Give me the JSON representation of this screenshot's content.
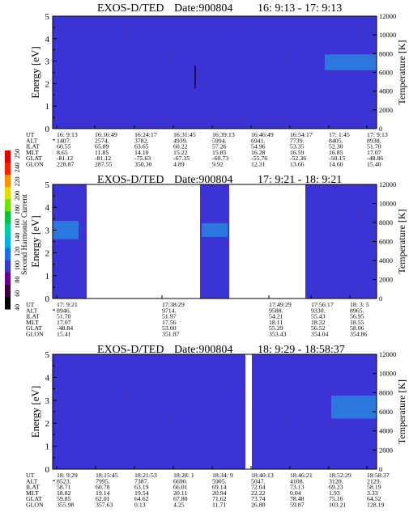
{
  "chart_data": [
    {
      "type": "heatmap",
      "title": "EXOS-D/TED",
      "date_label": "Date:900804",
      "time_range": "16: 9:13 - 17: 9:13",
      "ylabel": "Energy [eV]",
      "y2label": "Temperature [K]",
      "ylim": [
        0,
        5
      ],
      "y2lim": [
        0,
        12000
      ],
      "yticks": [
        "0",
        "1",
        "2",
        "3",
        "4",
        "5"
      ],
      "y2ticks": [
        "0",
        "2000",
        "4000",
        "6000",
        "8000",
        "10000",
        "12000"
      ],
      "background_color": "#3a33d6",
      "gaps": [],
      "hot_region": {
        "x_start_fraction": 0.84,
        "x_end_fraction": 1.0,
        "energy_low": 2.6,
        "energy_high": 3.3,
        "color": "#2c7fe0"
      },
      "spike": {
        "x_fraction": 0.44,
        "energy_low": 1.8,
        "energy_high": 2.8
      },
      "row_labels": [
        "UT",
        "ALT",
        "ILAT",
        "MLT",
        "GLAT",
        "GLON"
      ],
      "columns": [
        {
          "UT": "16: 9:13",
          "ALT": "1407.",
          "ILAT": "60.55",
          "MLT": "8.65",
          "GLAT": "-81.12",
          "GLON": "228.87"
        },
        {
          "UT": "16:16:49",
          "ALT": "2574.",
          "ILAT": "65.89",
          "MLT": "11.85",
          "GLAT": "-81.12",
          "GLON": "287.55"
        },
        {
          "UT": "16:24:17",
          "ALT": "3782.",
          "ILAT": "63.65",
          "MLT": "14.10",
          "GLAT": "-75.63",
          "GLON": "350.30"
        },
        {
          "UT": "16:31:45",
          "ALT": "4939.",
          "ILAT": "60.22",
          "MLT": "15.22",
          "GLAT": "-67.35",
          "GLON": "4.89"
        },
        {
          "UT": "16:39:13",
          "ALT": "5994.",
          "ILAT": "57.26",
          "MLT": "15.85",
          "GLAT": "-60.73",
          "GLON": "9.92"
        },
        {
          "UT": "16:46:49",
          "ALT": "6941.",
          "ILAT": "54.96",
          "MLT": "16.28",
          "GLAT": "-55.76",
          "GLON": "12.31"
        },
        {
          "UT": "16:54:17",
          "ALT": "7739.",
          "ILAT": "53.35",
          "MLT": "16.59",
          "GLAT": "-52.36",
          "GLON": "13.66"
        },
        {
          "UT": "17: 1:45",
          "ALT": "8405.",
          "ILAT": "52.30",
          "MLT": "16.85",
          "GLAT": "-50.15",
          "GLON": "14.60"
        },
        {
          "UT": "17: 9:13",
          "ALT": "8938.",
          "ILAT": "51.70",
          "MLT": "17.07",
          "GLAT": "-48.86",
          "GLON": "15.40"
        }
      ]
    },
    {
      "type": "heatmap",
      "title": "EXOS-D/TED",
      "date_label": "Date:900804",
      "time_range": "17: 9:21 - 18: 9:21",
      "ylabel": "Energy [eV]",
      "y2label": "Temperature [K]",
      "ylim": [
        0,
        5
      ],
      "y2lim": [
        0,
        12000
      ],
      "yticks": [
        "0",
        "1",
        "2",
        "3",
        "4",
        "5"
      ],
      "y2ticks": [
        "0",
        "2000",
        "4000",
        "6000",
        "8000",
        "10000",
        "12000"
      ],
      "background_color": "#3a33d6",
      "gaps": [
        [
          0.105,
          0.455
        ],
        [
          0.545,
          0.78
        ]
      ],
      "hot_region": {
        "x_start_fraction": 0.0,
        "x_end_fraction": 0.08,
        "energy_low": 2.6,
        "energy_high": 3.4,
        "color": "#2c7fe0"
      },
      "hot_region_2": {
        "x_start_fraction": 0.46,
        "x_end_fraction": 0.54,
        "energy_low": 2.7,
        "energy_high": 3.3,
        "color": "#2c7fe0"
      },
      "row_labels": [
        "UT",
        "ALT",
        "ILAT",
        "MLT",
        "GLAT",
        "GLON"
      ],
      "columns": [
        {
          "UT": "17: 9:21",
          "ALT": "8946.",
          "ILAT": "51.70",
          "MLT": "17.07",
          "GLAT": "-48.84",
          "GLON": "15.41"
        },
        {
          "UT": "17:38:29",
          "ALT": "9714.",
          "ILAT": "51.97",
          "MLT": "17.56",
          "GLAT": "53.00",
          "GLON": "351.87"
        },
        {
          "UT": "17:49:29",
          "ALT": "9588.",
          "ILAT": "54.21",
          "MLT": "18.11",
          "GLAT": "55.29",
          "GLON": "353.43"
        },
        {
          "UT": "17:56:17",
          "ALT": "9330.",
          "ILAT": "55.43",
          "MLT": "18.32",
          "GLAT": "56.52",
          "GLON": "354.04"
        },
        {
          "UT": "18: 3: 5",
          "ALT": "8965.",
          "ILAT": "56.95",
          "MLT": "18.55",
          "GLAT": "58.06",
          "GLON": "354.86"
        }
      ]
    },
    {
      "type": "heatmap",
      "title": "EXOS-D/TED",
      "date_label": "Date:900804",
      "time_range": "18: 9:29 - 18:58:37",
      "ylabel": "Energy [eV]",
      "y2label": "Temperature [K]",
      "ylim": [
        0,
        5
      ],
      "y2lim": [
        0,
        12000
      ],
      "yticks": [
        "0",
        "1",
        "2",
        "3",
        "4",
        "5"
      ],
      "y2ticks": [
        "0",
        "2000",
        "4000",
        "6000",
        "8000",
        "10000",
        "12000"
      ],
      "background_color": "#3a33d6",
      "gaps": [
        [
          0.595,
          0.615
        ]
      ],
      "hot_region": {
        "x_start_fraction": 0.86,
        "x_end_fraction": 1.0,
        "energy_low": 2.2,
        "energy_high": 3.2,
        "color": "#2c7fe0"
      },
      "row_labels": [
        "UT",
        "ALT",
        "ILAT",
        "MLT",
        "GLAT",
        "GLON"
      ],
      "columns": [
        {
          "UT": "18: 9:29",
          "ALT": "8523.",
          "ILAT": "58.71",
          "MLT": "18.82",
          "GLAT": "59.85",
          "GLON": "355.98"
        },
        {
          "UT": "18:15:45",
          "ALT": "7995.",
          "ILAT": "60.78",
          "MLT": "19.14",
          "GLAT": "62.01",
          "GLON": "357.63"
        },
        {
          "UT": "18:21:53",
          "ALT": "7387.",
          "ILAT": "63.19",
          "MLT": "19.54",
          "GLAT": "64.62",
          "GLON": "0.13"
        },
        {
          "UT": "18:28: 1",
          "ALT": "6690.",
          "ILAT": "66.01",
          "MLT": "20.11",
          "GLAT": "67.80",
          "GLON": "4.25"
        },
        {
          "UT": "18:34: 9",
          "ALT": "5905.",
          "ILAT": "69.14",
          "MLT": "20.94",
          "GLAT": "71.62",
          "GLON": "11.71"
        },
        {
          "UT": "18:40:13",
          "ALT": "5047.",
          "ILAT": "72.04",
          "MLT": "22.22",
          "GLAT": "73.74",
          "GLON": "26.80"
        },
        {
          "UT": "18:46:21",
          "ALT": "4108.",
          "ILAT": "73.13",
          "MLT": "0.04",
          "GLAT": "78.48",
          "GLON": "59.87"
        },
        {
          "UT": "18:52:29",
          "ALT": "3120.",
          "ILAT": "69.23",
          "MLT": "1.93",
          "GLAT": "75.16",
          "GLON": "103.21"
        },
        {
          "UT": "18:58:37",
          "ALT": "2129.",
          "ILAT": "58.19",
          "MLT": "3.33",
          "GLAT": "64.52",
          "GLON": "128.19"
        }
      ]
    }
  ],
  "colorbar": {
    "label": "Second Harmonic Current",
    "ticks": [
      "40",
      "60",
      "80",
      "100",
      "120",
      "140",
      "160",
      "180",
      "200",
      "220",
      "240",
      "250"
    ],
    "colors": [
      "#000000",
      "#3a0040",
      "#6a0090",
      "#3a33d6",
      "#1f6fe8",
      "#00b0e0",
      "#00d0a0",
      "#00c040",
      "#70e000",
      "#e0e000",
      "#ff9000",
      "#ff2000",
      "#e00000"
    ]
  }
}
